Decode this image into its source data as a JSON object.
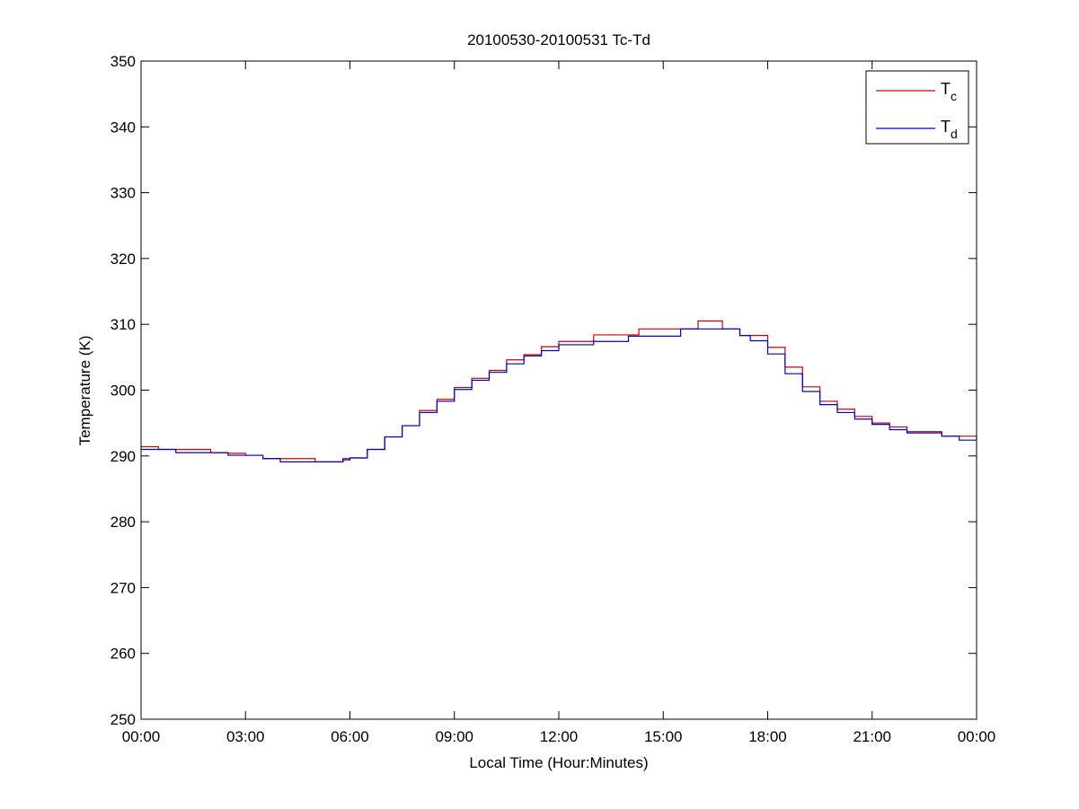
{
  "chart_data": {
    "type": "line",
    "title": "20100530-20100531 Tc-Td",
    "xlabel": "Local Time (Hour:Minutes)",
    "ylabel": "Temperature (K)",
    "xlim": [
      0,
      24
    ],
    "ylim": [
      250,
      350
    ],
    "x_ticks": [
      0,
      3,
      6,
      9,
      12,
      15,
      18,
      21,
      24
    ],
    "x_tick_labels": [
      "00:00",
      "03:00",
      "06:00",
      "09:00",
      "12:00",
      "15:00",
      "18:00",
      "21:00",
      "00:00"
    ],
    "y_ticks": [
      250,
      260,
      270,
      280,
      290,
      300,
      310,
      320,
      330,
      340,
      350
    ],
    "y_tick_labels": [
      "250",
      "260",
      "270",
      "280",
      "290",
      "300",
      "310",
      "320",
      "330",
      "340",
      "350"
    ],
    "grid": false,
    "legend_position": "top-right",
    "step": true,
    "x": [
      0.0,
      0.5,
      1.0,
      1.5,
      2.0,
      2.5,
      3.0,
      3.5,
      4.0,
      4.5,
      5.0,
      5.5,
      5.8,
      6.0,
      6.5,
      7.0,
      7.5,
      8.0,
      8.5,
      9.0,
      9.5,
      10.0,
      10.5,
      11.0,
      11.5,
      12.0,
      13.0,
      14.0,
      14.3,
      15.0,
      15.5,
      16.0,
      16.7,
      17.2,
      17.5,
      18.0,
      18.5,
      19.0,
      19.5,
      20.0,
      20.5,
      21.0,
      21.5,
      22.0,
      23.0,
      23.5,
      24.0
    ],
    "series": [
      {
        "name": "T",
        "subscript": "c",
        "color": "#cc0000",
        "values": [
          291.4,
          291.0,
          291.0,
          291.0,
          290.5,
          290.4,
          290.1,
          289.6,
          289.6,
          289.6,
          289.1,
          289.1,
          289.6,
          289.7,
          291.0,
          292.9,
          294.6,
          296.9,
          298.6,
          300.4,
          301.8,
          303.0,
          304.6,
          305.4,
          306.6,
          307.4,
          308.4,
          308.4,
          309.3,
          309.3,
          309.3,
          310.5,
          309.3,
          308.3,
          308.3,
          306.5,
          303.5,
          300.5,
          298.3,
          297.1,
          296.0,
          295.0,
          294.4,
          293.7,
          293.0,
          293.0,
          292.4
        ]
      },
      {
        "name": "T",
        "subscript": "d",
        "color": "#0000cc",
        "values": [
          291.0,
          291.0,
          290.5,
          290.5,
          290.5,
          290.1,
          290.1,
          289.6,
          289.1,
          289.1,
          289.1,
          289.1,
          289.4,
          289.7,
          291.0,
          292.9,
          294.6,
          296.6,
          298.3,
          300.1,
          301.5,
          302.7,
          304.0,
          305.2,
          306.0,
          306.9,
          307.4,
          308.2,
          308.2,
          308.2,
          309.3,
          309.3,
          309.3,
          308.3,
          307.5,
          305.5,
          302.5,
          299.8,
          297.8,
          296.6,
          295.6,
          294.8,
          294.0,
          293.5,
          293.0,
          292.4,
          292.4
        ]
      }
    ]
  }
}
